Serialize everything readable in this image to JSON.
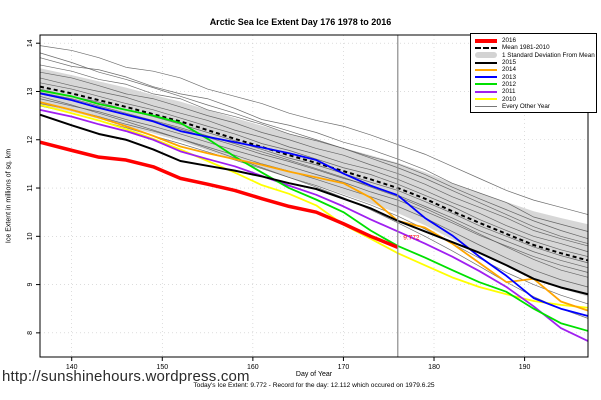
{
  "footer": {
    "url": "http://sunshinehours.wordpress.com",
    "note": "Today's Ice Extent: 9.772  - Record for the day: 12.112 which occured on 1979.6.25"
  },
  "legend": {
    "items": [
      {
        "label": "2016",
        "type": "thick",
        "color": "#ff0000"
      },
      {
        "label": "Mean 1981-2010",
        "type": "dash",
        "color": "#000000"
      },
      {
        "label": "1 Standard Deviation From Mean",
        "type": "band",
        "color": "#d3d3d3"
      },
      {
        "label": "2015",
        "type": "line",
        "color": "#000000"
      },
      {
        "label": "2014",
        "type": "line",
        "color": "#ffa500"
      },
      {
        "label": "2013",
        "type": "line",
        "color": "#0000ff"
      },
      {
        "label": "2012",
        "type": "line",
        "color": "#00e000"
      },
      {
        "label": "2011",
        "type": "line",
        "color": "#a020f0"
      },
      {
        "label": "2010",
        "type": "line",
        "color": "#ffff00"
      },
      {
        "label": "Every Other Year",
        "type": "thin",
        "color": "#777777"
      }
    ]
  },
  "chart_data": {
    "type": "line",
    "title": "Arctic Sea Ice Extent Day 176 1978 to 2016",
    "xlabel": "Day of Year",
    "ylabel": "Ice Extent in millions of sq. km",
    "x_ticks": [
      140,
      150,
      160,
      170,
      180,
      190
    ],
    "y_ticks": [
      8,
      9,
      10,
      11,
      12,
      13,
      14
    ],
    "xlim": [
      136.5,
      197
    ],
    "ylim": [
      7.5,
      14.17
    ],
    "marker_day": 176,
    "marker_color": "#8c8c8c",
    "grid_color": "#c8c8c8",
    "band_color": "#d3d3d3",
    "gray_color": "#555555",
    "annotation": {
      "text": "9.772",
      "day": 176.6,
      "value": 9.93,
      "color": "#ff0000"
    },
    "x": [
      136.5,
      140,
      143,
      146,
      149,
      152,
      155,
      158,
      161,
      164,
      167,
      170,
      173,
      176,
      179,
      182,
      185,
      188,
      191,
      194,
      197
    ],
    "mean": {
      "name": "Mean 1981-2010",
      "values": [
        13.1,
        12.96,
        12.82,
        12.68,
        12.53,
        12.38,
        12.2,
        12.02,
        11.85,
        11.68,
        11.52,
        11.35,
        11.18,
        11.0,
        10.78,
        10.52,
        10.28,
        10.05,
        9.82,
        9.65,
        9.5
      ]
    },
    "band": {
      "name": "1 Standard Deviation From Mean",
      "upper": [
        13.48,
        13.34,
        13.21,
        13.08,
        12.93,
        12.79,
        12.62,
        12.45,
        12.29,
        12.13,
        11.98,
        11.83,
        11.68,
        11.52,
        11.33,
        11.1,
        10.9,
        10.71,
        10.52,
        10.38,
        10.25
      ],
      "lower": [
        12.72,
        12.58,
        12.43,
        12.28,
        12.13,
        11.97,
        11.78,
        11.59,
        11.41,
        11.23,
        11.06,
        10.87,
        10.68,
        10.48,
        10.23,
        9.94,
        9.66,
        9.39,
        9.12,
        8.92,
        8.75
      ]
    },
    "series": [
      {
        "name": "2010",
        "color": "#ffff00",
        "width": 1.8,
        "values": [
          12.72,
          12.55,
          12.4,
          12.22,
          12.02,
          11.8,
          11.56,
          11.32,
          11.06,
          10.88,
          10.64,
          10.24,
          9.95,
          9.65,
          9.4,
          9.15,
          8.95,
          8.8,
          8.66,
          8.58,
          8.52
        ]
      },
      {
        "name": "2011",
        "color": "#a020f0",
        "width": 1.8,
        "values": [
          12.62,
          12.48,
          12.32,
          12.18,
          12.0,
          11.76,
          11.6,
          11.45,
          11.25,
          11.05,
          10.86,
          10.62,
          10.35,
          10.1,
          9.85,
          9.58,
          9.28,
          8.95,
          8.55,
          8.1,
          7.83
        ]
      },
      {
        "name": "2012",
        "color": "#00e000",
        "width": 1.8,
        "values": [
          13.02,
          12.9,
          12.74,
          12.62,
          12.5,
          12.35,
          12.02,
          11.65,
          11.32,
          11.0,
          10.76,
          10.5,
          10.12,
          9.8,
          9.56,
          9.3,
          9.05,
          8.85,
          8.5,
          8.2,
          8.04
        ]
      },
      {
        "name": "2014",
        "color": "#ffa500",
        "width": 1.8,
        "values": [
          12.78,
          12.62,
          12.46,
          12.28,
          12.08,
          11.86,
          11.72,
          11.6,
          11.48,
          11.34,
          11.22,
          11.1,
          10.8,
          10.32,
          10.18,
          9.85,
          9.45,
          9.05,
          9.12,
          8.65,
          8.46
        ]
      },
      {
        "name": "2013",
        "color": "#0000ff",
        "width": 1.8,
        "values": [
          12.96,
          12.82,
          12.66,
          12.52,
          12.38,
          12.18,
          12.06,
          11.95,
          11.84,
          11.72,
          11.58,
          11.3,
          11.05,
          10.85,
          10.38,
          10.02,
          9.58,
          9.18,
          8.72,
          8.5,
          8.35
        ]
      },
      {
        "name": "2015",
        "color": "#000000",
        "width": 2,
        "values": [
          12.52,
          12.3,
          12.12,
          12.0,
          11.8,
          11.56,
          11.46,
          11.36,
          11.24,
          11.1,
          10.98,
          10.78,
          10.58,
          10.32,
          10.1,
          9.88,
          9.66,
          9.4,
          9.12,
          8.94,
          8.8
        ]
      },
      {
        "name": "2016",
        "color": "#ff0000",
        "width": 3.5,
        "values": [
          11.95,
          11.78,
          11.64,
          11.58,
          11.44,
          11.2,
          11.08,
          10.95,
          10.78,
          10.62,
          10.5,
          10.26,
          10.0,
          9.772
        ]
      }
    ],
    "every_other_year": {
      "name": "Every Other Year",
      "values": [
        [
          13.95,
          13.85,
          13.7,
          13.5,
          13.42,
          13.28,
          13.05,
          12.9,
          12.75,
          12.55,
          12.4,
          12.28,
          12.1,
          11.9,
          11.7,
          11.45,
          11.2,
          10.95,
          10.75,
          10.6,
          10.45
        ],
        [
          13.7,
          13.52,
          13.45,
          13.3,
          13.1,
          12.95,
          12.85,
          12.65,
          12.42,
          12.3,
          12.15,
          11.95,
          11.8,
          11.6,
          11.38,
          11.1,
          10.9,
          10.7,
          10.4,
          10.25,
          10.1
        ],
        [
          13.55,
          13.42,
          13.25,
          13.15,
          12.95,
          12.85,
          12.62,
          12.48,
          12.32,
          12.12,
          11.98,
          11.82,
          11.65,
          11.5,
          11.28,
          11.02,
          10.78,
          10.55,
          10.32,
          10.12,
          9.95
        ],
        [
          13.4,
          13.28,
          13.12,
          12.95,
          12.85,
          12.68,
          12.5,
          12.35,
          12.15,
          12.0,
          11.82,
          11.68,
          11.48,
          11.3,
          11.08,
          10.82,
          10.6,
          10.38,
          10.12,
          9.95,
          9.8
        ],
        [
          13.28,
          13.12,
          13.0,
          12.88,
          12.7,
          12.55,
          12.4,
          12.2,
          12.05,
          11.85,
          11.7,
          11.52,
          11.38,
          11.18,
          10.95,
          10.7,
          10.48,
          10.22,
          10.0,
          9.85,
          9.68
        ],
        [
          13.18,
          13.05,
          12.9,
          12.75,
          12.62,
          12.45,
          12.28,
          12.12,
          11.92,
          11.78,
          11.6,
          11.42,
          11.28,
          11.08,
          10.85,
          10.62,
          10.35,
          10.12,
          9.9,
          9.72,
          9.58
        ],
        [
          13.05,
          12.9,
          12.78,
          12.62,
          12.48,
          12.32,
          12.15,
          11.98,
          11.8,
          11.62,
          11.48,
          11.3,
          11.12,
          10.95,
          10.72,
          10.48,
          10.22,
          10.0,
          9.78,
          9.6,
          9.45
        ],
        [
          12.95,
          12.82,
          12.68,
          12.52,
          12.38,
          12.22,
          12.05,
          11.88,
          11.7,
          11.55,
          11.38,
          11.2,
          11.05,
          10.85,
          10.62,
          10.38,
          10.12,
          9.9,
          9.68,
          9.5,
          9.35
        ],
        [
          12.85,
          12.7,
          12.58,
          12.42,
          12.28,
          12.12,
          11.95,
          11.78,
          11.62,
          11.45,
          11.28,
          11.12,
          10.92,
          10.75,
          10.52,
          10.28,
          10.02,
          9.8,
          9.58,
          9.4,
          9.25
        ],
        [
          12.75,
          12.62,
          12.48,
          12.32,
          12.18,
          12.02,
          11.85,
          11.68,
          11.5,
          11.35,
          11.18,
          11.0,
          10.82,
          10.62,
          10.38,
          10.1,
          9.82,
          9.55,
          9.3,
          9.1,
          8.95
        ],
        [
          12.7,
          12.55,
          12.4,
          12.25,
          12.08,
          11.92,
          11.75,
          11.58,
          11.4,
          11.22,
          11.05,
          10.85,
          10.65,
          10.42,
          10.15,
          9.85,
          9.55,
          9.25,
          9.0,
          8.78,
          8.6
        ],
        [
          12.9,
          12.72,
          12.55,
          12.38,
          12.2,
          12.02,
          11.82,
          11.62,
          11.42,
          11.22,
          11.02,
          10.8,
          10.55,
          10.28,
          10.0,
          9.7,
          9.38,
          9.05,
          8.75,
          8.5,
          8.3
        ],
        [
          13.8,
          13.6,
          13.4,
          13.25,
          13.08,
          12.9,
          12.72,
          12.55,
          12.35,
          12.18,
          12.0,
          11.82,
          11.62,
          11.42,
          11.2,
          10.95,
          10.7,
          10.45,
          10.2,
          10.0,
          9.85
        ],
        [
          12.98,
          12.85,
          12.7,
          12.55,
          12.4,
          12.25,
          12.08,
          11.92,
          11.75,
          11.58,
          11.4,
          11.22,
          11.02,
          10.82,
          10.58,
          10.32,
          10.05,
          9.78,
          9.52,
          9.3,
          9.15
        ]
      ]
    }
  }
}
